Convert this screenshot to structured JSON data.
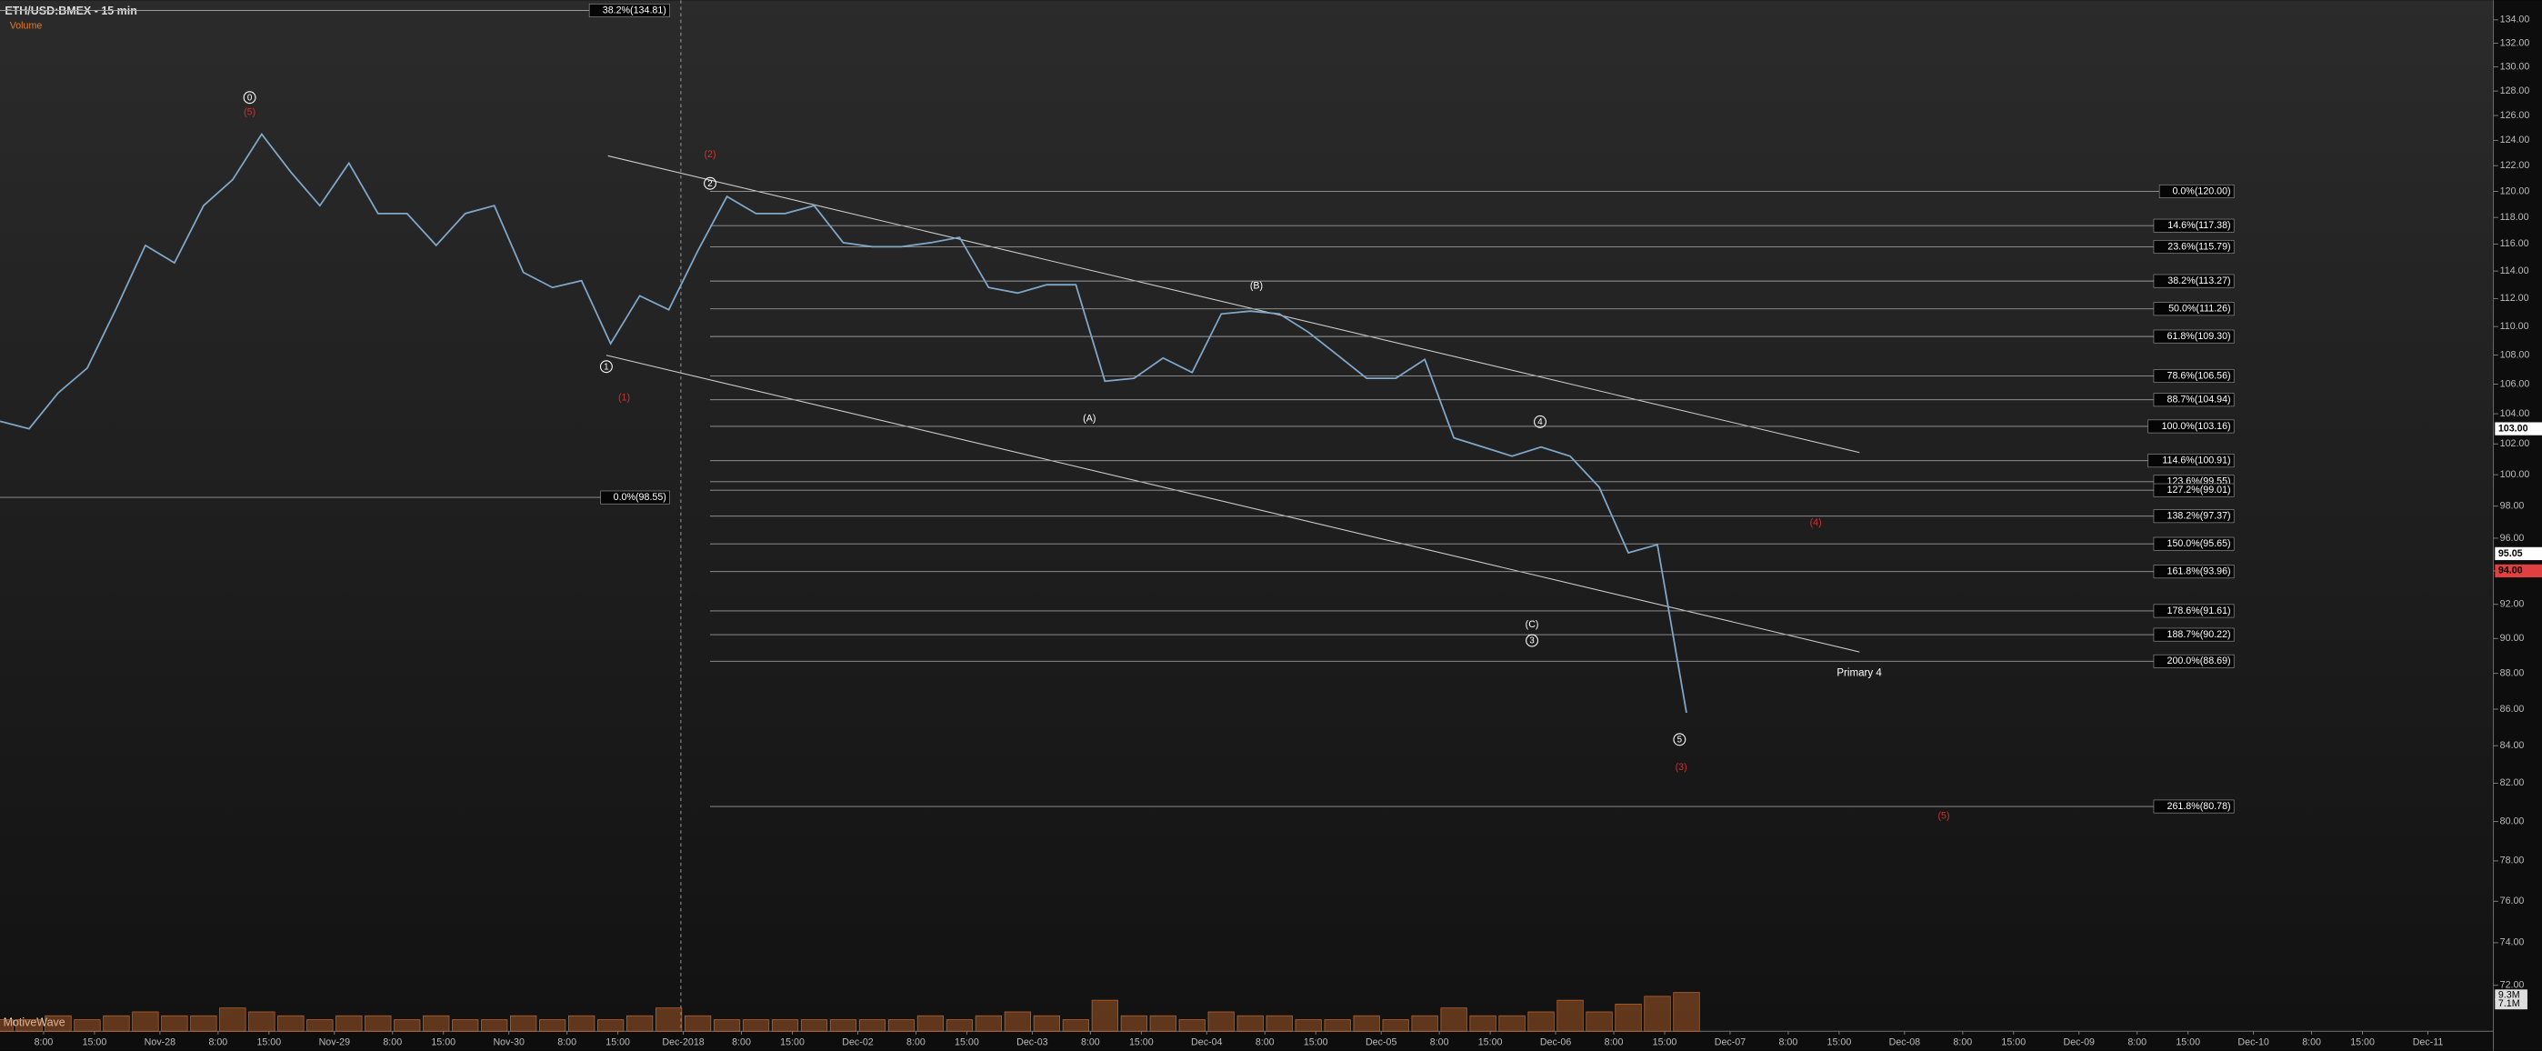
{
  "chart_data": {
    "type": "line",
    "title": "ETH/USD:BMEX - 15 min",
    "volume_title": "Volume",
    "brand": "MotiveWave",
    "annotation": "Primary 4",
    "log_scale": true,
    "grid": false,
    "color": "#7fa7c9",
    "volume_color": "#c0652a",
    "xlim": [
      "2018-11-27T02:00",
      "2018-12-11T09:00"
    ],
    "ylim": [
      69.9,
      135.7
    ],
    "vlim": [
      0,
      15
    ],
    "x": [
      "2018-11-27T02:00",
      "2018-11-27T06:00",
      "2018-11-27T10:00",
      "2018-11-27T14:00",
      "2018-11-27T18:00",
      "2018-11-27T22:00",
      "2018-11-28T02:00",
      "2018-11-28T06:00",
      "2018-11-28T10:00",
      "2018-11-28T14:00",
      "2018-11-28T18:00",
      "2018-11-28T22:00",
      "2018-11-29T02:00",
      "2018-11-29T06:00",
      "2018-11-29T10:00",
      "2018-11-29T14:00",
      "2018-11-29T18:00",
      "2018-11-29T22:00",
      "2018-11-30T02:00",
      "2018-11-30T06:00",
      "2018-11-30T10:00",
      "2018-11-30T14:00",
      "2018-11-30T18:00",
      "2018-11-30T22:00",
      "2018-12-01T02:00",
      "2018-12-01T06:00",
      "2018-12-01T10:00",
      "2018-12-01T14:00",
      "2018-12-01T18:00",
      "2018-12-01T22:00",
      "2018-12-02T02:00",
      "2018-12-02T06:00",
      "2018-12-02T10:00",
      "2018-12-02T14:00",
      "2018-12-02T18:00",
      "2018-12-02T22:00",
      "2018-12-03T02:00",
      "2018-12-03T06:00",
      "2018-12-03T10:00",
      "2018-12-03T14:00",
      "2018-12-03T18:00",
      "2018-12-03T22:00",
      "2018-12-04T02:00",
      "2018-12-04T06:00",
      "2018-12-04T10:00",
      "2018-12-04T14:00",
      "2018-12-04T18:00",
      "2018-12-04T22:00",
      "2018-12-05T02:00",
      "2018-12-05T06:00",
      "2018-12-05T10:00",
      "2018-12-05T14:00",
      "2018-12-05T18:00",
      "2018-12-05T22:00",
      "2018-12-06T02:00",
      "2018-12-06T06:00",
      "2018-12-06T10:00",
      "2018-12-06T14:00",
      "2018-12-06T18:00"
    ],
    "values": [
      103.5,
      103.0,
      105.4,
      107.1,
      111.3,
      115.9,
      114.6,
      118.9,
      120.9,
      124.5,
      121.5,
      118.9,
      122.2,
      118.3,
      118.3,
      115.9,
      118.3,
      118.9,
      113.9,
      112.8,
      113.3,
      108.8,
      112.2,
      111.2,
      115.5,
      119.6,
      118.3,
      118.3,
      118.9,
      116.1,
      115.8,
      115.8,
      116.1,
      116.5,
      112.8,
      112.4,
      113.0,
      113.0,
      106.2,
      106.4,
      107.8,
      106.8,
      110.9,
      111.1,
      110.9,
      109.6,
      108.0,
      106.4,
      106.4,
      107.7,
      102.4,
      101.8,
      101.2,
      101.8,
      101.2,
      99.2,
      95.1,
      95.6,
      85.8
    ],
    "volume": [
      3,
      3,
      4,
      3,
      4,
      5,
      4,
      4,
      6,
      5,
      4,
      3,
      4,
      4,
      3,
      4,
      3,
      3,
      4,
      3,
      4,
      3,
      4,
      6,
      4,
      3,
      3,
      3,
      3,
      3,
      3,
      3,
      4,
      3,
      4,
      5,
      4,
      3,
      8,
      4,
      4,
      3,
      5,
      4,
      4,
      3,
      3,
      4,
      3,
      4,
      6,
      4,
      4,
      5,
      8,
      5,
      7,
      9,
      10
    ],
    "yticks": [
      {
        "value": 134,
        "label": "134.00"
      },
      {
        "value": 132,
        "label": "132.00"
      },
      {
        "value": 130,
        "label": "130.00"
      },
      {
        "value": 128,
        "label": "128.00"
      },
      {
        "value": 126,
        "label": "126.00"
      },
      {
        "value": 124,
        "label": "124.00"
      },
      {
        "value": 122,
        "label": "122.00"
      },
      {
        "value": 120,
        "label": "120.00"
      },
      {
        "value": 118,
        "label": "118.00"
      },
      {
        "value": 116,
        "label": "116.00"
      },
      {
        "value": 114,
        "label": "114.00"
      },
      {
        "value": 112,
        "label": "112.00"
      },
      {
        "value": 110,
        "label": "110.00"
      },
      {
        "value": 108,
        "label": "108.00"
      },
      {
        "value": 106,
        "label": "106.00"
      },
      {
        "value": 104,
        "label": "104.00"
      },
      {
        "value": 102,
        "label": "102.00"
      },
      {
        "value": 100,
        "label": "100.00"
      },
      {
        "value": 98,
        "label": "98.00"
      },
      {
        "value": 96,
        "label": "96.00"
      },
      {
        "value": 94,
        "label": "94.00"
      },
      {
        "value": 92,
        "label": "92.00"
      },
      {
        "value": 90,
        "label": "90.00"
      },
      {
        "value": 88,
        "label": "88.00"
      },
      {
        "value": 86,
        "label": "86.00"
      },
      {
        "value": 84,
        "label": "84.00"
      },
      {
        "value": 82,
        "label": "82.00"
      },
      {
        "value": 80,
        "label": "80.00"
      },
      {
        "value": 78,
        "label": "78.00"
      },
      {
        "value": 76,
        "label": "76.00"
      },
      {
        "value": 74,
        "label": "74.00"
      },
      {
        "value": 72,
        "label": "72.00"
      }
    ],
    "xticks": [
      {
        "value": "2018-11-27T08:00",
        "label": "8:00"
      },
      {
        "value": "2018-11-27T15:00",
        "label": "15:00"
      },
      {
        "value": "2018-11-28T00:00",
        "label": "Nov-28"
      },
      {
        "value": "2018-11-28T08:00",
        "label": "8:00"
      },
      {
        "value": "2018-11-28T15:00",
        "label": "15:00"
      },
      {
        "value": "2018-11-29T00:00",
        "label": "Nov-29"
      },
      {
        "value": "2018-11-29T08:00",
        "label": "8:00"
      },
      {
        "value": "2018-11-29T15:00",
        "label": "15:00"
      },
      {
        "value": "2018-11-30T00:00",
        "label": "Nov-30"
      },
      {
        "value": "2018-11-30T08:00",
        "label": "8:00"
      },
      {
        "value": "2018-11-30T15:00",
        "label": "15:00"
      },
      {
        "value": "2018-12-01T00:00",
        "label": "Dec-2018"
      },
      {
        "value": "2018-12-01T08:00",
        "label": "8:00"
      },
      {
        "value": "2018-12-01T15:00",
        "label": "15:00"
      },
      {
        "value": "2018-12-02T00:00",
        "label": "Dec-02"
      },
      {
        "value": "2018-12-02T08:00",
        "label": "8:00"
      },
      {
        "value": "2018-12-02T15:00",
        "label": "15:00"
      },
      {
        "value": "2018-12-03T00:00",
        "label": "Dec-03"
      },
      {
        "value": "2018-12-03T08:00",
        "label": "8:00"
      },
      {
        "value": "2018-12-03T15:00",
        "label": "15:00"
      },
      {
        "value": "2018-12-04T00:00",
        "label": "Dec-04"
      },
      {
        "value": "2018-12-04T08:00",
        "label": "8:00"
      },
      {
        "value": "2018-12-04T15:00",
        "label": "15:00"
      },
      {
        "value": "2018-12-05T00:00",
        "label": "Dec-05"
      },
      {
        "value": "2018-12-05T08:00",
        "label": "8:00"
      },
      {
        "value": "2018-12-05T15:00",
        "label": "15:00"
      },
      {
        "value": "2018-12-06T00:00",
        "label": "Dec-06"
      },
      {
        "value": "2018-12-06T08:00",
        "label": "8:00"
      },
      {
        "value": "2018-12-06T15:00",
        "label": "15:00"
      },
      {
        "value": "2018-12-07T00:00",
        "label": "Dec-07"
      },
      {
        "value": "2018-12-07T08:00",
        "label": "8:00"
      },
      {
        "value": "2018-12-07T15:00",
        "label": "15:00"
      },
      {
        "value": "2018-12-08T00:00",
        "label": "Dec-08"
      },
      {
        "value": "2018-12-08T08:00",
        "label": "8:00"
      },
      {
        "value": "2018-12-08T15:00",
        "label": "15:00"
      },
      {
        "value": "2018-12-09T00:00",
        "label": "Dec-09"
      },
      {
        "value": "2018-12-09T08:00",
        "label": "8:00"
      },
      {
        "value": "2018-12-09T15:00",
        "label": "15:00"
      },
      {
        "value": "2018-12-10T00:00",
        "label": "Dec-10"
      },
      {
        "value": "2018-12-10T08:00",
        "label": "8:00"
      },
      {
        "value": "2018-12-10T15:00",
        "label": "15:00"
      },
      {
        "value": "2018-12-11T00:00",
        "label": "Dec-11"
      }
    ],
    "fib_left": [
      {
        "value": 134.81,
        "label": "38.2%(134.81)"
      },
      {
        "value": 98.55,
        "label": "0.0%(98.55)"
      }
    ],
    "fib_right": [
      {
        "value": 120.0,
        "label": "0.0%(120.00)"
      },
      {
        "value": 117.38,
        "label": "14.6%(117.38)"
      },
      {
        "value": 115.79,
        "label": "23.6%(115.79)"
      },
      {
        "value": 113.27,
        "label": "38.2%(113.27)"
      },
      {
        "value": 111.26,
        "label": "50.0%(111.26)"
      },
      {
        "value": 109.3,
        "label": "61.8%(109.30)"
      },
      {
        "value": 106.56,
        "label": "78.6%(106.56)"
      },
      {
        "value": 104.94,
        "label": "88.7%(104.94)"
      },
      {
        "value": 103.16,
        "label": "100.0%(103.16)"
      },
      {
        "value": 100.91,
        "label": "114.6%(100.91)"
      },
      {
        "value": 99.55,
        "label": "123.6%(99.55)"
      },
      {
        "value": 99.01,
        "label": "127.2%(99.01)"
      },
      {
        "value": 97.37,
        "label": "138.2%(97.37)"
      },
      {
        "value": 95.65,
        "label": "150.0%(95.65)"
      },
      {
        "value": 93.96,
        "label": "161.8%(93.96)"
      },
      {
        "value": 91.61,
        "label": "178.6%(91.61)"
      },
      {
        "value": 90.22,
        "label": "188.7%(90.22)"
      },
      {
        "value": 88.69,
        "label": "200.0%(88.69)"
      },
      {
        "value": 80.78,
        "label": "261.8%(80.78)"
      }
    ],
    "price_markers": [
      {
        "value": 103,
        "label": "103.00",
        "color": "#ffffff"
      },
      {
        "value": 95.05,
        "label": "95.05",
        "color": "#ffffff"
      },
      {
        "value": 94,
        "label": "94.00",
        "color": "#e04040"
      }
    ],
    "volume_markers": [
      {
        "value": 9.3,
        "label": "9.3M"
      },
      {
        "value": 7.1,
        "label": "7.1M"
      }
    ],
    "wave_labels": [
      "0",
      "(5)",
      "1",
      "(1)",
      "(2)",
      "2",
      "(B)",
      "(A)",
      "4",
      "(C)",
      "3",
      "5",
      "(3)",
      "(4)",
      "(5)"
    ]
  }
}
